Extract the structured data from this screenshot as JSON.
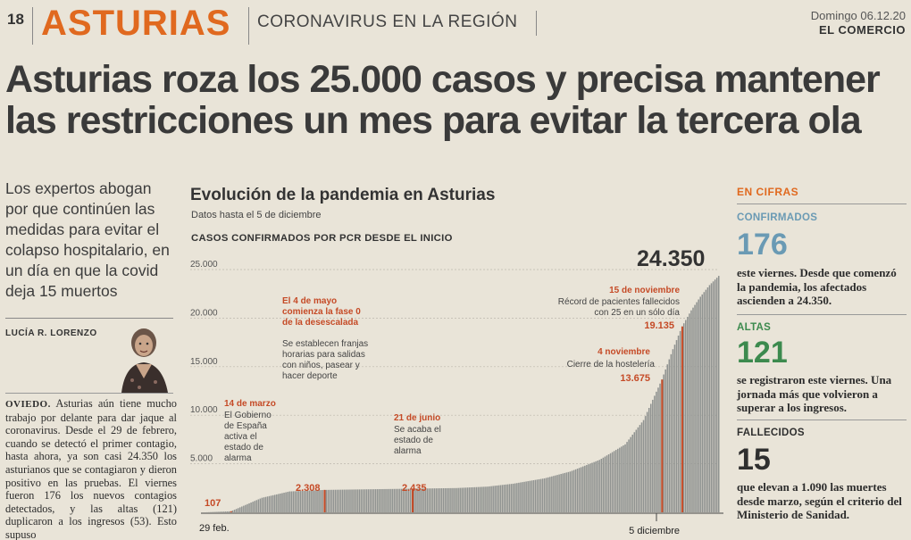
{
  "header": {
    "page_number": "18",
    "section": "ASTURIAS",
    "subsection": "CORONAVIRUS EN LA REGIÓN",
    "date": "Domingo 06.12.20",
    "newspaper": "EL COMERCIO"
  },
  "headline": "Asturias roza los 25.000 casos y precisa mantener las restricciones un mes para evitar la tercera ola",
  "standfirst": "Los expertos abogan por que continúen las medidas para evitar el colapso hospitalario, en un día en que la covid deja 15 muertos",
  "byline": "LUCÍA R. LORENZO",
  "body": {
    "dateline": "OVIEDO.",
    "text": "Asturias aún tiene mucho trabajo por delante para dar jaque al coronavirus. Desde el 29 de febrero, cuando se detectó el primer contagio, hasta ahora, ya son casi 24.350 los asturianos que se contagiaron y dieron positivo en las pruebas. El viernes fueron 176 los nuevos contagios detectados, y las altas (121) duplicaron a los ingresos (53). Esto supuso"
  },
  "chart": {
    "title": "Evolución de la pandemia en Asturias",
    "subtitle": "Datos hasta el 5 de diciembre",
    "heading": "CASOS CONFIRMADOS POR PCR DESDE EL INICIO",
    "final_label": "24.350",
    "annotations": [
      {
        "date": "14 de marzo",
        "text": [
          "El Gobierno",
          "de España",
          "activa el",
          "estado de",
          "alarma"
        ],
        "value": "107"
      },
      {
        "date_lines": [
          "El 4 de mayo",
          "comienza la fase 0",
          "de la desescalada"
        ],
        "text": [
          "Se establecen franjas",
          "horarias para salidas",
          "con niños, pasear y",
          "hacer deporte"
        ],
        "value": "2.308"
      },
      {
        "date": "21 de junio",
        "text": [
          "Se acaba el",
          "estado de",
          "alarma"
        ],
        "value": "2.435"
      },
      {
        "date": "4 noviembre",
        "text": [
          "Cierre de la hostelería"
        ],
        "value": "13.675"
      },
      {
        "date": "15 de noviembre",
        "text": [
          "Récord de pacientes fallecidos",
          "con 25 en un sólo día"
        ],
        "value": "19.135"
      }
    ]
  },
  "chart_data": {
    "type": "bar",
    "title": "Evolución de la pandemia en Asturias",
    "subtitle": "Datos hasta el 5 de diciembre",
    "ylabel": "CASOS CONFIRMADOS POR PCR DESDE EL INICIO",
    "ylim": [
      0,
      25000
    ],
    "y_ticks": [
      "5.000",
      "10.000",
      "15.000",
      "20.000",
      "25.000"
    ],
    "x_tick_labels": [
      "29 feb.",
      "5 diciembre"
    ],
    "grid": true,
    "series": [
      {
        "x": [
          "2020-02-29",
          "2020-03-14",
          "2020-03-31",
          "2020-04-15",
          "2020-05-04",
          "2020-05-31",
          "2020-06-21",
          "2020-07-15",
          "2020-08-01",
          "2020-08-15",
          "2020-09-01",
          "2020-09-15",
          "2020-10-01",
          "2020-10-15",
          "2020-10-25",
          "2020-11-04",
          "2020-11-10",
          "2020-11-15",
          "2020-11-20",
          "2020-11-25",
          "2020-11-30",
          "2020-12-05"
        ],
        "values": [
          1,
          107,
          1500,
          2150,
          2308,
          2380,
          2435,
          2500,
          2650,
          2950,
          3500,
          4200,
          5400,
          7000,
          9500,
          13675,
          16800,
          19135,
          20800,
          22200,
          23400,
          24350
        ]
      }
    ],
    "highlighted": [
      {
        "date": "2020-03-14",
        "value": 107
      },
      {
        "date": "2020-05-04",
        "value": 2308
      },
      {
        "date": "2020-06-21",
        "value": 2435
      },
      {
        "date": "2020-11-04",
        "value": 13675
      },
      {
        "date": "2020-11-15",
        "value": 19135
      }
    ]
  },
  "cifras": {
    "title": "EN CIFRAS",
    "items": [
      {
        "label": "CONFIRMADOS",
        "value": "176",
        "desc": "este viernes. Desde que comenzó la pandemia, los afectados ascienden a 24.350.",
        "color": "#6a9ab4"
      },
      {
        "label": "ALTAS",
        "value": "121",
        "desc": "se registraron este viernes. Una jornada más que volvieron a superar a los ingresos.",
        "color": "#3c8a4e"
      },
      {
        "label": "FALLECIDOS",
        "value": "15",
        "desc": "que elevan a 1.090 las muertes desde marzo, según el criterio del Ministerio de Sanidad.",
        "color": "#2f2f2f"
      }
    ]
  },
  "colors": {
    "accent": "#e0691f",
    "annotation": "#c54a26",
    "bar": "#8f9290",
    "paper": "#e9e4d8"
  }
}
